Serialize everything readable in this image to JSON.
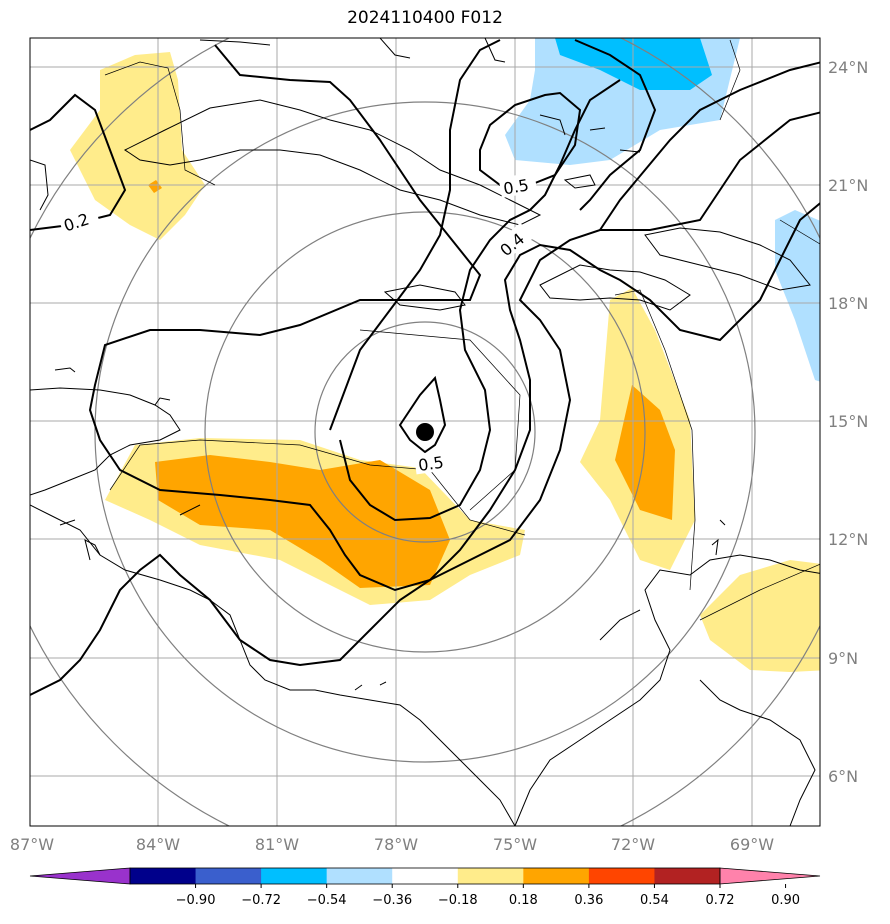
{
  "title": "2024110400 F012",
  "map": {
    "lon_ticks": [
      "87°W",
      "84°W",
      "81°W",
      "78°W",
      "75°W",
      "72°W",
      "69°W"
    ],
    "lat_ticks": [
      "24°N",
      "21°N",
      "18°N",
      "15°N",
      "12°N",
      "9°N",
      "6°N"
    ],
    "grid": true,
    "center_marker": {
      "lon": -77.3,
      "lat": 14.8
    },
    "contour_labels": [
      "0.2",
      "0.5",
      "0.4",
      "0.5"
    ]
  },
  "colorbar": {
    "tick_labels": [
      "−0.90",
      "−0.72",
      "−0.54",
      "−0.36",
      "−0.18",
      "0.18",
      "0.36",
      "0.54",
      "0.72",
      "0.90"
    ],
    "colors": [
      "#9932cc",
      "#00008b",
      "#3a5fcd",
      "#00bfff",
      "#b0e0ff",
      "#ffffff",
      "#ffec8b",
      "#ffa500",
      "#ff4500",
      "#b22222",
      "#ff82ab"
    ]
  }
}
